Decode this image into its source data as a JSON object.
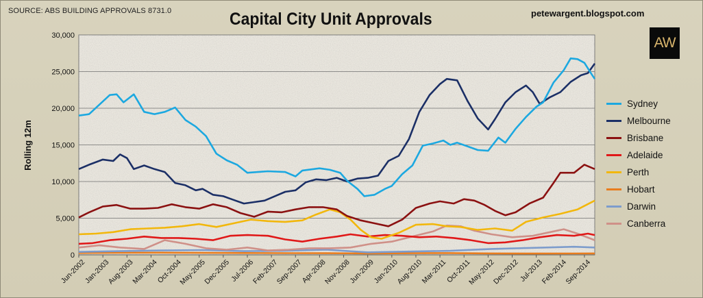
{
  "header": {
    "source": "SOURCE: ABS BUILDING APPROVALS 8731.0",
    "title": "Capital City Unit Approvals",
    "blog": "petewargent.blogspot.com",
    "logo_text": "AW"
  },
  "chart_data": {
    "type": "line",
    "title": "Capital City Unit Approvals",
    "xlabel": "",
    "ylabel": "Rolling 12m",
    "ylim": [
      0,
      30000
    ],
    "yticks": [
      "0",
      "5,000",
      "10,000",
      "15,000",
      "20,000",
      "25,000",
      "30,000"
    ],
    "xlim": [
      "2002-06",
      "2014-12"
    ],
    "xticks": [
      "Jun-2002",
      "Jan-2003",
      "Aug-2003",
      "Mar-2004",
      "Oct-2004",
      "May-2005",
      "Dec-2005",
      "Jul-2006",
      "Feb-2007",
      "Sep-2007",
      "Apr-2008",
      "Nov-2008",
      "Jun-2009",
      "Jan-2010",
      "Aug-2010",
      "Mar-2011",
      "Oct-2011",
      "May-2012",
      "Dec-2012",
      "Jul-2013",
      "Feb-2014",
      "Sep-2014"
    ],
    "grid": true,
    "legend_position": "right",
    "series": [
      {
        "name": "Sydney",
        "color": "#1ca8e0",
        "points": [
          [
            "2002-06",
            19000
          ],
          [
            "2002-09",
            19200
          ],
          [
            "2002-12",
            20500
          ],
          [
            "2003-03",
            21800
          ],
          [
            "2003-05",
            21900
          ],
          [
            "2003-07",
            20800
          ],
          [
            "2003-10",
            21900
          ],
          [
            "2004-01",
            19500
          ],
          [
            "2004-04",
            19200
          ],
          [
            "2004-07",
            19500
          ],
          [
            "2004-10",
            20100
          ],
          [
            "2005-01",
            18400
          ],
          [
            "2005-04",
            17500
          ],
          [
            "2005-07",
            16200
          ],
          [
            "2005-10",
            13800
          ],
          [
            "2006-01",
            12900
          ],
          [
            "2006-04",
            12300
          ],
          [
            "2006-07",
            11200
          ],
          [
            "2006-10",
            11300
          ],
          [
            "2007-01",
            11400
          ],
          [
            "2007-06",
            11300
          ],
          [
            "2007-09",
            10700
          ],
          [
            "2007-11",
            11500
          ],
          [
            "2008-04",
            11800
          ],
          [
            "2008-07",
            11600
          ],
          [
            "2008-10",
            11200
          ],
          [
            "2008-12",
            10100
          ],
          [
            "2009-03",
            9000
          ],
          [
            "2009-05",
            8000
          ],
          [
            "2009-08",
            8200
          ],
          [
            "2009-11",
            9000
          ],
          [
            "2010-01",
            9400
          ],
          [
            "2010-04",
            11000
          ],
          [
            "2010-07",
            12200
          ],
          [
            "2010-10",
            14900
          ],
          [
            "2011-01",
            15200
          ],
          [
            "2011-04",
            15600
          ],
          [
            "2011-06",
            15000
          ],
          [
            "2011-08",
            15300
          ],
          [
            "2011-11",
            14800
          ],
          [
            "2012-02",
            14300
          ],
          [
            "2012-05",
            14200
          ],
          [
            "2012-08",
            16000
          ],
          [
            "2012-10",
            15300
          ],
          [
            "2013-01",
            17200
          ],
          [
            "2013-04",
            18800
          ],
          [
            "2013-07",
            20200
          ],
          [
            "2013-09",
            20800
          ],
          [
            "2013-12",
            23500
          ],
          [
            "2014-03",
            25200
          ],
          [
            "2014-05",
            26800
          ],
          [
            "2014-07",
            26700
          ],
          [
            "2014-09",
            26200
          ],
          [
            "2014-11",
            24700
          ],
          [
            "2014-12",
            24000
          ]
        ]
      },
      {
        "name": "Melbourne",
        "color": "#1b2f66",
        "points": [
          [
            "2002-06",
            11700
          ],
          [
            "2002-09",
            12300
          ],
          [
            "2003-01",
            13000
          ],
          [
            "2003-04",
            12800
          ],
          [
            "2003-06",
            13700
          ],
          [
            "2003-08",
            13200
          ],
          [
            "2003-10",
            11700
          ],
          [
            "2004-01",
            12200
          ],
          [
            "2004-04",
            11700
          ],
          [
            "2004-07",
            11300
          ],
          [
            "2004-10",
            9800
          ],
          [
            "2005-01",
            9500
          ],
          [
            "2005-04",
            8800
          ],
          [
            "2005-06",
            9000
          ],
          [
            "2005-09",
            8200
          ],
          [
            "2005-12",
            8000
          ],
          [
            "2006-03",
            7500
          ],
          [
            "2006-06",
            7000
          ],
          [
            "2006-09",
            7200
          ],
          [
            "2006-12",
            7400
          ],
          [
            "2007-03",
            8000
          ],
          [
            "2007-06",
            8600
          ],
          [
            "2007-09",
            8800
          ],
          [
            "2007-12",
            9900
          ],
          [
            "2008-03",
            10300
          ],
          [
            "2008-06",
            10200
          ],
          [
            "2008-09",
            10500
          ],
          [
            "2008-12",
            10000
          ],
          [
            "2009-03",
            10400
          ],
          [
            "2009-06",
            10500
          ],
          [
            "2009-09",
            10800
          ],
          [
            "2009-12",
            12800
          ],
          [
            "2010-03",
            13500
          ],
          [
            "2010-06",
            15800
          ],
          [
            "2010-09",
            19500
          ],
          [
            "2010-12",
            21800
          ],
          [
            "2011-03",
            23300
          ],
          [
            "2011-05",
            24000
          ],
          [
            "2011-08",
            23800
          ],
          [
            "2011-11",
            21000
          ],
          [
            "2012-02",
            18600
          ],
          [
            "2012-05",
            17100
          ],
          [
            "2012-07",
            18500
          ],
          [
            "2012-10",
            20800
          ],
          [
            "2013-01",
            22200
          ],
          [
            "2013-04",
            23100
          ],
          [
            "2013-06",
            22200
          ],
          [
            "2013-08",
            20600
          ],
          [
            "2013-11",
            21500
          ],
          [
            "2014-02",
            22200
          ],
          [
            "2014-05",
            23600
          ],
          [
            "2014-08",
            24500
          ],
          [
            "2014-10",
            24800
          ],
          [
            "2014-12",
            26100
          ]
        ]
      },
      {
        "name": "Brisbane",
        "color": "#8b1111",
        "points": [
          [
            "2002-06",
            5100
          ],
          [
            "2002-09",
            5800
          ],
          [
            "2003-01",
            6600
          ],
          [
            "2003-05",
            6800
          ],
          [
            "2003-09",
            6300
          ],
          [
            "2004-01",
            6300
          ],
          [
            "2004-05",
            6400
          ],
          [
            "2004-09",
            6900
          ],
          [
            "2005-01",
            6500
          ],
          [
            "2005-05",
            6300
          ],
          [
            "2005-09",
            6900
          ],
          [
            "2006-01",
            6500
          ],
          [
            "2006-05",
            5700
          ],
          [
            "2006-09",
            5200
          ],
          [
            "2007-01",
            5900
          ],
          [
            "2007-05",
            5800
          ],
          [
            "2007-09",
            6200
          ],
          [
            "2008-01",
            6500
          ],
          [
            "2008-05",
            6500
          ],
          [
            "2008-09",
            6200
          ],
          [
            "2008-12",
            5300
          ],
          [
            "2009-04",
            4700
          ],
          [
            "2009-08",
            4300
          ],
          [
            "2009-12",
            3900
          ],
          [
            "2010-04",
            4800
          ],
          [
            "2010-08",
            6400
          ],
          [
            "2010-12",
            7000
          ],
          [
            "2011-03",
            7300
          ],
          [
            "2011-07",
            7000
          ],
          [
            "2011-10",
            7600
          ],
          [
            "2012-01",
            7400
          ],
          [
            "2012-04",
            6800
          ],
          [
            "2012-07",
            6000
          ],
          [
            "2012-10",
            5400
          ],
          [
            "2013-01",
            5800
          ],
          [
            "2013-05",
            7000
          ],
          [
            "2013-09",
            7800
          ],
          [
            "2013-12",
            9800
          ],
          [
            "2014-02",
            11200
          ],
          [
            "2014-06",
            11200
          ],
          [
            "2014-09",
            12300
          ],
          [
            "2014-12",
            11700
          ]
        ]
      },
      {
        "name": "Adelaide",
        "color": "#e01818",
        "points": [
          [
            "2002-06",
            1500
          ],
          [
            "2002-10",
            1600
          ],
          [
            "2003-03",
            2000
          ],
          [
            "2003-08",
            2200
          ],
          [
            "2004-01",
            2500
          ],
          [
            "2004-06",
            2300
          ],
          [
            "2004-11",
            2300
          ],
          [
            "2005-04",
            2200
          ],
          [
            "2005-09",
            2000
          ],
          [
            "2006-02",
            2600
          ],
          [
            "2006-07",
            2700
          ],
          [
            "2007-01",
            2600
          ],
          [
            "2007-06",
            2100
          ],
          [
            "2007-11",
            1800
          ],
          [
            "2008-04",
            2200
          ],
          [
            "2008-09",
            2500
          ],
          [
            "2009-01",
            2800
          ],
          [
            "2009-06",
            2500
          ],
          [
            "2009-11",
            2700
          ],
          [
            "2010-04",
            2600
          ],
          [
            "2010-09",
            2400
          ],
          [
            "2011-02",
            2500
          ],
          [
            "2011-07",
            2300
          ],
          [
            "2011-12",
            2000
          ],
          [
            "2012-05",
            1600
          ],
          [
            "2012-10",
            1700
          ],
          [
            "2013-03",
            2000
          ],
          [
            "2013-08",
            2400
          ],
          [
            "2014-01",
            2700
          ],
          [
            "2014-06",
            2600
          ],
          [
            "2014-10",
            2900
          ],
          [
            "2014-12",
            2700
          ]
        ]
      },
      {
        "name": "Perth",
        "color": "#f2b70c",
        "points": [
          [
            "2002-06",
            2800
          ],
          [
            "2002-11",
            2900
          ],
          [
            "2003-04",
            3100
          ],
          [
            "2003-09",
            3500
          ],
          [
            "2004-02",
            3600
          ],
          [
            "2004-07",
            3700
          ],
          [
            "2004-12",
            3900
          ],
          [
            "2005-05",
            4200
          ],
          [
            "2005-10",
            3800
          ],
          [
            "2006-03",
            4300
          ],
          [
            "2006-08",
            4800
          ],
          [
            "2007-01",
            4600
          ],
          [
            "2007-06",
            4500
          ],
          [
            "2007-11",
            4700
          ],
          [
            "2008-03",
            5500
          ],
          [
            "2008-07",
            6200
          ],
          [
            "2008-10",
            5800
          ],
          [
            "2009-01",
            4800
          ],
          [
            "2009-04",
            3400
          ],
          [
            "2009-07",
            2400
          ],
          [
            "2009-10",
            2200
          ],
          [
            "2010-03",
            3000
          ],
          [
            "2010-08",
            4100
          ],
          [
            "2011-01",
            4200
          ],
          [
            "2011-05",
            3900
          ],
          [
            "2011-09",
            3800
          ],
          [
            "2012-02",
            3400
          ],
          [
            "2012-07",
            3600
          ],
          [
            "2012-12",
            3300
          ],
          [
            "2013-04",
            4500
          ],
          [
            "2013-09",
            5100
          ],
          [
            "2014-02",
            5600
          ],
          [
            "2014-07",
            6200
          ],
          [
            "2014-12",
            7400
          ]
        ]
      },
      {
        "name": "Hobart",
        "color": "#e87d1e",
        "points": [
          [
            "2002-06",
            250
          ],
          [
            "2003-06",
            280
          ],
          [
            "2004-06",
            300
          ],
          [
            "2005-06",
            270
          ],
          [
            "2006-06",
            250
          ],
          [
            "2007-06",
            230
          ],
          [
            "2008-06",
            220
          ],
          [
            "2009-06",
            200
          ],
          [
            "2010-06",
            220
          ],
          [
            "2011-06",
            240
          ],
          [
            "2012-06",
            200
          ],
          [
            "2013-06",
            180
          ],
          [
            "2014-06",
            190
          ],
          [
            "2014-12",
            200
          ]
        ]
      },
      {
        "name": "Darwin",
        "color": "#7d9ccc",
        "points": [
          [
            "2002-06",
            400
          ],
          [
            "2003-06",
            500
          ],
          [
            "2004-06",
            600
          ],
          [
            "2005-06",
            650
          ],
          [
            "2006-06",
            500
          ],
          [
            "2007-06",
            550
          ],
          [
            "2008-06",
            700
          ],
          [
            "2009-06",
            350
          ],
          [
            "2010-06",
            450
          ],
          [
            "2011-06",
            550
          ],
          [
            "2012-06",
            800
          ],
          [
            "2013-06",
            950
          ],
          [
            "2014-06",
            1100
          ],
          [
            "2014-12",
            1000
          ]
        ]
      },
      {
        "name": "Canberra",
        "color": "#cf9088",
        "points": [
          [
            "2002-06",
            1000
          ],
          [
            "2002-12",
            1300
          ],
          [
            "2003-06",
            1000
          ],
          [
            "2004-01",
            800
          ],
          [
            "2004-07",
            2000
          ],
          [
            "2005-01",
            1500
          ],
          [
            "2005-07",
            900
          ],
          [
            "2006-01",
            700
          ],
          [
            "2006-07",
            1000
          ],
          [
            "2007-01",
            600
          ],
          [
            "2007-07",
            700
          ],
          [
            "2008-01",
            900
          ],
          [
            "2008-07",
            900
          ],
          [
            "2009-01",
            1000
          ],
          [
            "2009-07",
            1500
          ],
          [
            "2010-01",
            1800
          ],
          [
            "2010-07",
            2500
          ],
          [
            "2011-01",
            3200
          ],
          [
            "2011-05",
            4000
          ],
          [
            "2011-09",
            3900
          ],
          [
            "2012-01",
            3300
          ],
          [
            "2012-06",
            2800
          ],
          [
            "2012-12",
            2400
          ],
          [
            "2013-06",
            2600
          ],
          [
            "2013-12",
            3200
          ],
          [
            "2014-03",
            3500
          ],
          [
            "2014-07",
            2900
          ],
          [
            "2014-12",
            2000
          ]
        ]
      }
    ]
  }
}
